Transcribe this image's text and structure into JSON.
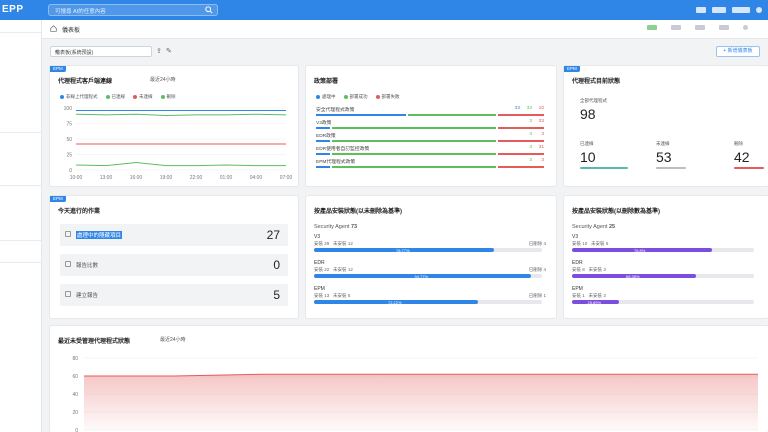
{
  "app": {
    "brand": "EPP",
    "search_placeholder": "可搜尋 AI的任意內容"
  },
  "header": {
    "breadcrumb": "儀表板"
  },
  "toolbar": {
    "dashboard_select": "儀表板(系統預設)",
    "add_button": "+ 新增儀表板"
  },
  "colors": {
    "blue": "#2f86e6",
    "green": "#5cbf5c",
    "red": "#e45b5b",
    "purple": "#7b4ee0",
    "teal": "#5ab7b0"
  },
  "card_online": {
    "tag": "EPM",
    "title": "代理程式客戶端連線",
    "range": "最近24小時",
    "legend": [
      "非線上代理程式",
      "已連線",
      "未連線",
      "刪除"
    ],
    "chart_data": {
      "type": "line",
      "x": [
        "10:00",
        "13:00",
        "16:00",
        "19:00",
        "22:00",
        "01:00",
        "04:00",
        "07:00"
      ],
      "ylim": [
        0,
        100
      ],
      "yticks": [
        0,
        25,
        50,
        75,
        100
      ],
      "series": [
        {
          "name": "非線上代理程式",
          "color": "#2f86e6",
          "values": [
            96,
            96,
            96,
            96,
            96,
            96,
            96,
            96
          ]
        },
        {
          "name": "已連線",
          "color": "#5cbf5c",
          "values": [
            90,
            89,
            90,
            88,
            89,
            89,
            90,
            89
          ]
        },
        {
          "name": "未連線",
          "color": "#e45b5b",
          "values": [
            42,
            42,
            42,
            42,
            42,
            42,
            42,
            42
          ]
        },
        {
          "name": "刪除",
          "color": "#5cbf5c",
          "values": [
            8,
            7,
            12,
            7,
            7,
            8,
            7,
            7
          ]
        }
      ]
    }
  },
  "card_policy": {
    "title": "政策部署",
    "legend": [
      "處理中",
      "部署成功",
      "部署失敗"
    ],
    "rows": [
      {
        "name": "安全代理程式政策",
        "a": "33",
        "b": "33",
        "c": "10"
      },
      {
        "name": "V3政策",
        "a": "",
        "b": "3",
        "c": "33"
      },
      {
        "name": "EDR政策",
        "a": "",
        "b": "3",
        "c": "3"
      },
      {
        "name": "EDR使用者自訂監控政策",
        "a": "",
        "b": "3",
        "c": "31"
      },
      {
        "name": "EPM代理程式政策",
        "a": "",
        "b": "3",
        "c": "3"
      }
    ]
  },
  "card_stats": {
    "tag": "EPM",
    "title": "代理程式目前狀態",
    "total_label": "全部代理程式",
    "total": "98",
    "items": [
      {
        "label": "已連線",
        "value": "10"
      },
      {
        "label": "未連線",
        "value": "53"
      },
      {
        "label": "刪除",
        "value": "42"
      }
    ]
  },
  "card_tasks": {
    "tag": "EPM",
    "title": "今天進行的作業",
    "rows": [
      {
        "label": "處理中的隱藏項目",
        "value": "27"
      },
      {
        "label": "報告比數",
        "value": "0"
      },
      {
        "label": "建立報告",
        "value": "5"
      }
    ]
  },
  "card_install1": {
    "title": "按產品安裝狀態(以未刪除為基準)",
    "agent_label": "Security Agent",
    "agent_value": "73",
    "products": [
      {
        "name": "V3",
        "installed_label": "安裝",
        "installed": "29",
        "not_label": "未安裝",
        "not": "12",
        "done_label": "已刪除",
        "done": "4",
        "pct": "78.77%",
        "ratio": 0.79
      },
      {
        "name": "EDR",
        "installed_label": "安裝",
        "installed": "22",
        "not_label": "未安裝",
        "not": "12",
        "done_label": "已刪除",
        "done": "4",
        "pct": "94.77%",
        "ratio": 0.95
      },
      {
        "name": "EPM",
        "installed_label": "安裝",
        "installed": "13",
        "not_label": "未安裝",
        "not": "5",
        "done_label": "已刪除",
        "done": "1",
        "pct": "72.22%",
        "ratio": 0.72
      }
    ]
  },
  "card_install2": {
    "title": "按產品安裝狀態(以刪除數為基準)",
    "agent_label": "Security Agent",
    "agent_value": "25",
    "products": [
      {
        "name": "V3",
        "installed_label": "安裝",
        "installed": "10",
        "not_label": "未安裝",
        "not": "5",
        "pct": "76.8%",
        "ratio": 0.77
      },
      {
        "name": "EDR",
        "installed_label": "安裝",
        "installed": "8",
        "not_label": "未安裝",
        "not": "3",
        "pct": "68.38%",
        "ratio": 0.68
      },
      {
        "name": "EPM",
        "installed_label": "安裝",
        "installed": "1",
        "not_label": "未安裝",
        "not": "3",
        "pct": "25.89%",
        "ratio": 0.26
      }
    ]
  },
  "card_bottom": {
    "title": "最近未受管理代理程式狀態",
    "range": "最近24小時",
    "chart_data": {
      "type": "area",
      "ylim": [
        0,
        80
      ],
      "yticks": [
        0,
        20,
        40,
        60,
        80
      ],
      "series": [
        {
          "color": "#e45b5b",
          "values": [
            60,
            60,
            60,
            61,
            62,
            62,
            62,
            62,
            62,
            62,
            62,
            62,
            62,
            62,
            62,
            62
          ]
        }
      ]
    }
  }
}
